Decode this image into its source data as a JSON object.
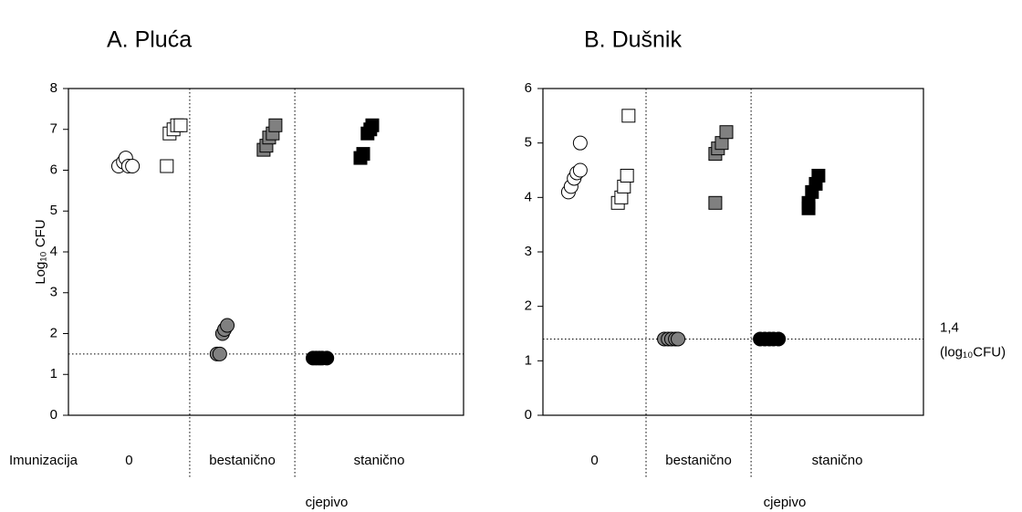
{
  "chart_data": [
    {
      "type": "scatter",
      "title": "A. Pluća",
      "ylabel": "Log₁₀ CFU",
      "xlabel": "cjepivo",
      "group_title": "Imunizacija",
      "groups": [
        "0",
        "bestanično",
        "stanično"
      ],
      "xlim": [
        0,
        10
      ],
      "separators": [
        3.07,
        5.73
      ],
      "ylim": [
        0,
        8
      ],
      "yticks": [
        0,
        1,
        2,
        3,
        4,
        5,
        6,
        7,
        8
      ],
      "threshold": 1.5,
      "series": [
        {
          "marker": "circle",
          "color": "#ffffff",
          "x": [
            1.27,
            1.39,
            1.45,
            1.52,
            1.62
          ],
          "values": [
            6.1,
            6.2,
            6.3,
            6.1,
            6.1
          ]
        },
        {
          "marker": "square",
          "color": "#ffffff",
          "x": [
            2.49,
            2.56,
            2.66,
            2.75,
            2.84
          ],
          "values": [
            6.1,
            6.9,
            7.0,
            7.1,
            7.1
          ]
        },
        {
          "marker": "circle",
          "color": "#808080",
          "x": [
            3.76,
            3.83,
            3.9,
            3.95,
            4.02
          ],
          "values": [
            1.5,
            1.5,
            2.0,
            2.1,
            2.2
          ]
        },
        {
          "marker": "square",
          "color": "#808080",
          "x": [
            4.94,
            5.01,
            5.08,
            5.17,
            5.24
          ],
          "values": [
            6.5,
            6.6,
            6.8,
            6.9,
            7.1
          ]
        },
        {
          "marker": "circle",
          "color": "#000000",
          "x": [
            6.19,
            6.27,
            6.35,
            6.42,
            6.54
          ],
          "values": [
            1.4,
            1.4,
            1.4,
            1.4,
            1.4
          ]
        },
        {
          "marker": "square",
          "color": "#000000",
          "x": [
            7.39,
            7.46,
            7.57,
            7.64,
            7.69
          ],
          "values": [
            6.3,
            6.4,
            6.9,
            7.0,
            7.1
          ]
        }
      ]
    },
    {
      "type": "scatter",
      "title": "B. Dušnik",
      "xlabel": "cjepivo",
      "groups": [
        "0",
        "bestanično",
        "stanično"
      ],
      "xlim": [
        0,
        10
      ],
      "separators": [
        2.71,
        5.47
      ],
      "ylim": [
        0,
        6
      ],
      "yticks": [
        0,
        1,
        2,
        3,
        4,
        5,
        6
      ],
      "threshold": 1.4,
      "threshold_label": [
        "1,4",
        "(log₁₀CFU)"
      ],
      "series": [
        {
          "marker": "circle",
          "color": "#ffffff",
          "x": [
            0.67,
            0.74,
            0.82,
            0.89,
            0.98,
            0.98
          ],
          "values": [
            4.1,
            4.2,
            4.35,
            4.45,
            4.5,
            5.0
          ]
        },
        {
          "marker": "square",
          "color": "#ffffff",
          "x": [
            1.97,
            2.06,
            2.13,
            2.21,
            2.25
          ],
          "values": [
            3.9,
            4.0,
            4.2,
            4.4,
            5.5
          ]
        },
        {
          "marker": "circle",
          "color": "#808080",
          "x": [
            3.19,
            3.29,
            3.38,
            3.48,
            3.55
          ],
          "values": [
            1.4,
            1.4,
            1.4,
            1.4,
            1.4
          ]
        },
        {
          "marker": "square",
          "color": "#808080",
          "x": [
            4.53,
            4.53,
            4.6,
            4.7,
            4.82
          ],
          "values": [
            3.9,
            4.8,
            4.9,
            5.0,
            5.2
          ]
        },
        {
          "marker": "circle",
          "color": "#000000",
          "x": [
            5.71,
            5.83,
            5.95,
            6.06,
            6.19
          ],
          "values": [
            1.4,
            1.4,
            1.4,
            1.4,
            1.4
          ]
        },
        {
          "marker": "square",
          "color": "#000000",
          "x": [
            6.98,
            6.98,
            7.07,
            7.17,
            7.24
          ],
          "values": [
            3.8,
            3.9,
            4.1,
            4.25,
            4.4
          ]
        }
      ]
    }
  ]
}
